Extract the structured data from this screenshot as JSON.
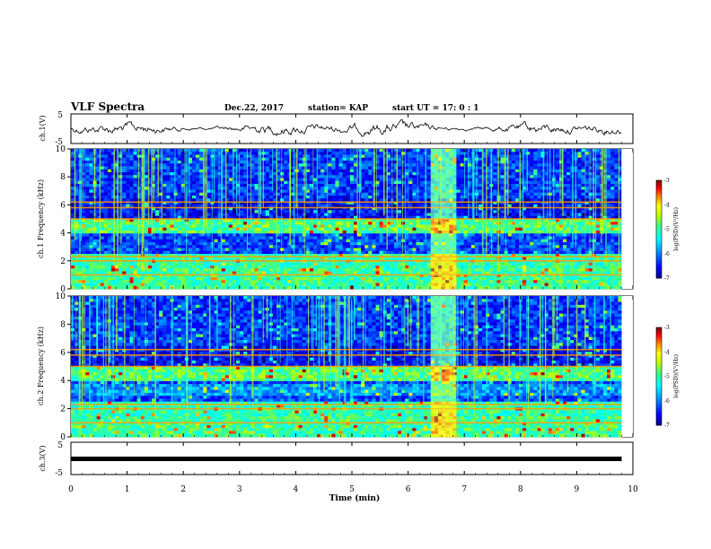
{
  "header": {
    "title": "VLF Spectra",
    "date": "Dec.22, 2017",
    "station": "station= KAP",
    "start": "start  UT =   17: 0  : 1"
  },
  "chart_data": {
    "type": "heatmap",
    "xlabel": "Time (min)",
    "xlim": [
      0,
      10
    ],
    "x_ticks": [
      "0",
      "1",
      "2",
      "3",
      "4",
      "5",
      "6",
      "7",
      "8",
      "9",
      "10"
    ],
    "panels": [
      {
        "ylabel": "ch.1(V)",
        "type": "line",
        "ylim": [
          -5,
          5
        ],
        "y_ticks": [
          "5",
          "-5"
        ],
        "data_end_min": 9.8
      },
      {
        "ylabel": "ch.1 Frequency (kHz)",
        "type": "heatmap",
        "ylim": [
          0,
          10
        ],
        "y_ticks": [
          "0",
          "2",
          "4",
          "6",
          "8",
          "10"
        ]
      },
      {
        "ylabel": "ch.2 Frequency (kHz)",
        "type": "heatmap",
        "ylim": [
          0,
          10
        ],
        "y_ticks": [
          "0",
          "2",
          "4",
          "6",
          "8",
          "10"
        ]
      },
      {
        "ylabel": "ch.3(V)",
        "type": "line",
        "ylim": [
          -5,
          5
        ],
        "y_ticks": [
          "5",
          "-5"
        ],
        "constant_value": 0
      }
    ],
    "colorbar": {
      "label": "log(PSD)(V²/Hz)",
      "range": [
        -7,
        -3
      ],
      "ticks": [
        "-3",
        "-4",
        "-5",
        "-6",
        "-7"
      ],
      "colormap": [
        "#00007f",
        "#0000ff",
        "#00a0ff",
        "#00ffff",
        "#40ff80",
        "#c0ff00",
        "#ffff00",
        "#ff8000",
        "#ff0000",
        "#8b0000",
        "#ffffff"
      ]
    },
    "features": {
      "event_band_min": [
        6.4,
        6.85
      ],
      "bright_band_khz": [
        1.0,
        2.0,
        2.3,
        5.0,
        5.8,
        6.2
      ]
    }
  }
}
